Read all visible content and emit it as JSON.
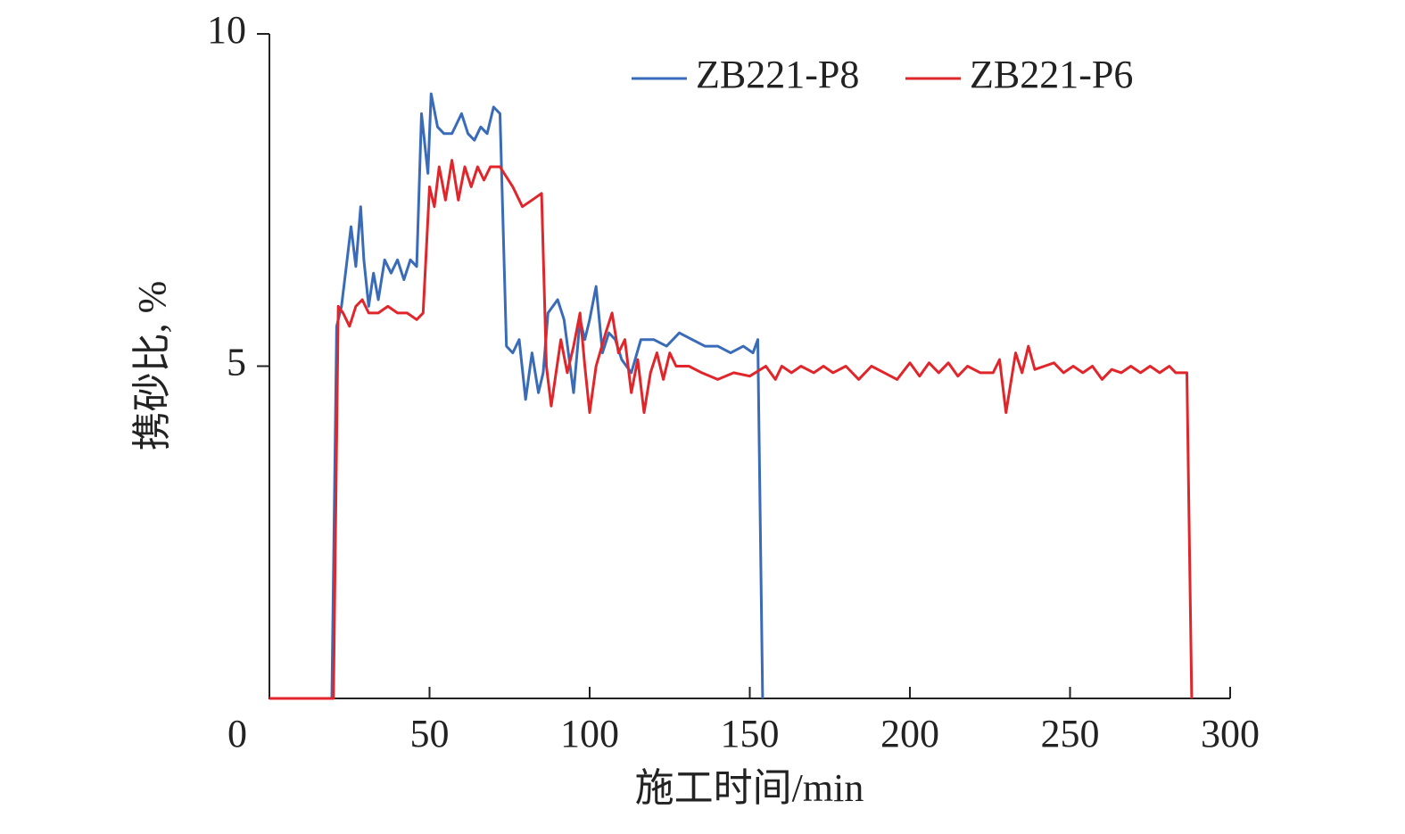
{
  "chart_data": {
    "type": "line",
    "xlabel": "施工时间/min",
    "ylabel": "携砂比, %",
    "xlim": [
      0,
      300
    ],
    "xticks": [
      0,
      50,
      100,
      150,
      200,
      250,
      300
    ],
    "ylim": [
      0,
      10
    ],
    "yticks": [
      5,
      10
    ],
    "series": [
      {
        "name": "ZB221-P8",
        "color": "#3a6bb8",
        "x": [
          0,
          19.5,
          21,
          22.5,
          24,
          25.5,
          27,
          28.5,
          29.5,
          31,
          32.5,
          34,
          36,
          38,
          40,
          42,
          44,
          46,
          47.5,
          49.5,
          50.5,
          52.5,
          54.5,
          57,
          60,
          62,
          64,
          66,
          68,
          70,
          72,
          74,
          76,
          78,
          80,
          82,
          84,
          85.5,
          87,
          90,
          92,
          95,
          97,
          98.5,
          100,
          102,
          104,
          106,
          108,
          110,
          113,
          116,
          120,
          124,
          128,
          132,
          136,
          140,
          144,
          148,
          151,
          152.5,
          154
        ],
        "values": [
          0,
          0,
          5.6,
          5.9,
          6.5,
          7.1,
          6.5,
          7.4,
          6.6,
          5.9,
          6.4,
          6.0,
          6.6,
          6.4,
          6.6,
          6.3,
          6.6,
          6.5,
          8.8,
          7.9,
          9.1,
          8.6,
          8.5,
          8.5,
          8.8,
          8.5,
          8.4,
          8.6,
          8.5,
          8.9,
          8.8,
          5.3,
          5.2,
          5.4,
          4.5,
          5.2,
          4.6,
          4.9,
          5.8,
          6.0,
          5.7,
          4.6,
          5.7,
          5.4,
          5.7,
          6.2,
          5.2,
          5.5,
          5.4,
          5.1,
          4.9,
          5.4,
          5.4,
          5.3,
          5.5,
          5.4,
          5.3,
          5.3,
          5.2,
          5.3,
          5.2,
          5.4,
          0
        ]
      },
      {
        "name": "ZB221-P6",
        "color": "#e0262b",
        "x": [
          0,
          20,
          21.5,
          23,
          25,
          27,
          29,
          31,
          34,
          37,
          40,
          43,
          46,
          48,
          50,
          51.5,
          53,
          55,
          57,
          59,
          61,
          63,
          65,
          67,
          69,
          72,
          76,
          79,
          82,
          85,
          86.5,
          88,
          91,
          93,
          95,
          97,
          98.5,
          100,
          102,
          105,
          107,
          109,
          111,
          113,
          115,
          117,
          119,
          121,
          123,
          125,
          127,
          131,
          135,
          140,
          145,
          150,
          155,
          158,
          160,
          163,
          166,
          170,
          173,
          176,
          180,
          184,
          188,
          192,
          196,
          200,
          203,
          206,
          209,
          212,
          215,
          218,
          222,
          226,
          228,
          230,
          233,
          235,
          237,
          239,
          242,
          245,
          248,
          251,
          254,
          257,
          260,
          263,
          266,
          269,
          272,
          275,
          278,
          281,
          283,
          286.5,
          288
        ],
        "values": [
          0,
          0,
          5.9,
          5.8,
          5.6,
          5.9,
          6.0,
          5.8,
          5.8,
          5.9,
          5.8,
          5.8,
          5.7,
          5.8,
          7.7,
          7.4,
          8.0,
          7.5,
          8.1,
          7.5,
          8.0,
          7.7,
          8.0,
          7.8,
          8.0,
          8.0,
          7.7,
          7.4,
          7.5,
          7.6,
          5.0,
          4.4,
          5.4,
          4.9,
          5.3,
          5.8,
          5.0,
          4.3,
          5.0,
          5.5,
          5.8,
          5.2,
          5.4,
          4.6,
          5.1,
          4.3,
          4.9,
          5.2,
          4.8,
          5.2,
          5.0,
          5.0,
          4.9,
          4.8,
          4.9,
          4.85,
          5.0,
          4.8,
          5.0,
          4.9,
          5.0,
          4.9,
          5.0,
          4.9,
          5.0,
          4.8,
          5.0,
          4.9,
          4.8,
          5.05,
          4.85,
          5.05,
          4.9,
          5.05,
          4.85,
          5.0,
          4.9,
          4.9,
          5.1,
          4.3,
          5.2,
          4.9,
          5.3,
          4.95,
          5.0,
          5.05,
          4.9,
          5.0,
          4.9,
          5.0,
          4.8,
          4.95,
          4.9,
          5.0,
          4.9,
          5.0,
          4.9,
          5.0,
          4.9,
          4.9,
          0
        ]
      }
    ]
  }
}
